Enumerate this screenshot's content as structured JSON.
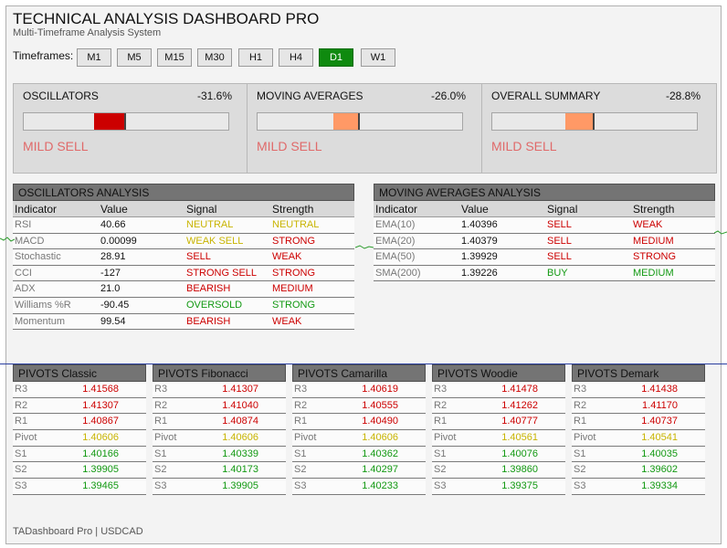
{
  "header": {
    "title": "TECHNICAL ANALYSIS DASHBOARD PRO",
    "subtitle": "Multi-Timeframe Analysis System",
    "timeframes_label": "Timeframes:"
  },
  "timeframes": [
    "M1",
    "M5",
    "M15",
    "M30",
    "H1",
    "H4",
    "D1",
    "W1"
  ],
  "active_timeframe": "D1",
  "colors": {
    "active_button": "#0f8a0f",
    "strong_sell_fill": "#cc0000",
    "mild_sell_fill": "#ff9966",
    "signal_text": "#e06a6a",
    "sell": "#cc0000",
    "buy": "#129912",
    "neutral": "#c8b400"
  },
  "summary_cards": [
    {
      "name": "OSCILLATORS",
      "percent": "-31.6%",
      "signal": "MILD SELL",
      "gauge_fill": 0.158,
      "fill_color": "#cc0000"
    },
    {
      "name": "MOVING AVERAGES",
      "percent": "-26.0%",
      "signal": "MILD SELL",
      "gauge_fill": 0.13,
      "fill_color": "#ff9966"
    },
    {
      "name": "OVERALL SUMMARY",
      "percent": "-28.8%",
      "signal": "MILD SELL",
      "gauge_fill": 0.144,
      "fill_color": "#ff9966"
    }
  ],
  "oscillators": {
    "title": "OSCILLATORS ANALYSIS",
    "columns": [
      "Indicator",
      "Value",
      "Signal",
      "Strength"
    ],
    "rows": [
      {
        "indicator": "RSI",
        "value": "40.66",
        "signal": "NEUTRAL",
        "signal_color": "#c8b400",
        "strength": "NEUTRAL",
        "strength_color": "#c8b400"
      },
      {
        "indicator": "MACD",
        "value": "0.00099",
        "signal": "WEAK SELL",
        "signal_color": "#c8b400",
        "strength": "STRONG",
        "strength_color": "#cc0000"
      },
      {
        "indicator": "Stochastic",
        "value": "28.91",
        "signal": "SELL",
        "signal_color": "#cc0000",
        "strength": "WEAK",
        "strength_color": "#cc0000"
      },
      {
        "indicator": "CCI",
        "value": "-127",
        "signal": "STRONG SELL",
        "signal_color": "#cc0000",
        "strength": "STRONG",
        "strength_color": "#cc0000"
      },
      {
        "indicator": "ADX",
        "value": "21.0",
        "signal": "BEARISH",
        "signal_color": "#cc0000",
        "strength": "MEDIUM",
        "strength_color": "#cc0000"
      },
      {
        "indicator": "Williams %R",
        "value": "-90.45",
        "signal": "OVERSOLD",
        "signal_color": "#129912",
        "strength": "STRONG",
        "strength_color": "#129912"
      },
      {
        "indicator": "Momentum",
        "value": "99.54",
        "signal": "BEARISH",
        "signal_color": "#cc0000",
        "strength": "WEAK",
        "strength_color": "#cc0000"
      }
    ]
  },
  "moving_averages": {
    "title": "MOVING AVERAGES ANALYSIS",
    "columns": [
      "Indicator",
      "Value",
      "Signal",
      "Strength"
    ],
    "rows": [
      {
        "indicator": "EMA(10)",
        "value": "1.40396",
        "signal": "SELL",
        "signal_color": "#cc0000",
        "strength": "WEAK",
        "strength_color": "#cc0000"
      },
      {
        "indicator": "EMA(20)",
        "value": "1.40379",
        "signal": "SELL",
        "signal_color": "#cc0000",
        "strength": "MEDIUM",
        "strength_color": "#cc0000"
      },
      {
        "indicator": "EMA(50)",
        "value": "1.39929",
        "signal": "SELL",
        "signal_color": "#cc0000",
        "strength": "STRONG",
        "strength_color": "#cc0000"
      },
      {
        "indicator": "SMA(200)",
        "value": "1.39226",
        "signal": "BUY",
        "signal_color": "#129912",
        "strength": "MEDIUM",
        "strength_color": "#129912"
      }
    ]
  },
  "pivots": [
    {
      "title": "PIVOTS Classic",
      "levels": [
        {
          "label": "R3",
          "value": "1.41568"
        },
        {
          "label": "R2",
          "value": "1.41307"
        },
        {
          "label": "R1",
          "value": "1.40867"
        },
        {
          "label": "Pivot",
          "value": "1.40606"
        },
        {
          "label": "S1",
          "value": "1.40166"
        },
        {
          "label": "S2",
          "value": "1.39905"
        },
        {
          "label": "S3",
          "value": "1.39465"
        }
      ]
    },
    {
      "title": "PIVOTS Fibonacci",
      "levels": [
        {
          "label": "R3",
          "value": "1.41307"
        },
        {
          "label": "R2",
          "value": "1.41040"
        },
        {
          "label": "R1",
          "value": "1.40874"
        },
        {
          "label": "Pivot",
          "value": "1.40606"
        },
        {
          "label": "S1",
          "value": "1.40339"
        },
        {
          "label": "S2",
          "value": "1.40173"
        },
        {
          "label": "S3",
          "value": "1.39905"
        }
      ]
    },
    {
      "title": "PIVOTS Camarilla",
      "levels": [
        {
          "label": "R3",
          "value": "1.40619"
        },
        {
          "label": "R2",
          "value": "1.40555"
        },
        {
          "label": "R1",
          "value": "1.40490"
        },
        {
          "label": "Pivot",
          "value": "1.40606"
        },
        {
          "label": "S1",
          "value": "1.40362"
        },
        {
          "label": "S2",
          "value": "1.40297"
        },
        {
          "label": "S3",
          "value": "1.40233"
        }
      ]
    },
    {
      "title": "PIVOTS Woodie",
      "levels": [
        {
          "label": "R3",
          "value": "1.41478"
        },
        {
          "label": "R2",
          "value": "1.41262"
        },
        {
          "label": "R1",
          "value": "1.40777"
        },
        {
          "label": "Pivot",
          "value": "1.40561"
        },
        {
          "label": "S1",
          "value": "1.40076"
        },
        {
          "label": "S2",
          "value": "1.39860"
        },
        {
          "label": "S3",
          "value": "1.39375"
        }
      ]
    },
    {
      "title": "PIVOTS Demark",
      "levels": [
        {
          "label": "R3",
          "value": "1.41438"
        },
        {
          "label": "R2",
          "value": "1.41170"
        },
        {
          "label": "R1",
          "value": "1.40737"
        },
        {
          "label": "Pivot",
          "value": "1.40541"
        },
        {
          "label": "S1",
          "value": "1.40035"
        },
        {
          "label": "S2",
          "value": "1.39602"
        },
        {
          "label": "S3",
          "value": "1.39334"
        }
      ]
    }
  ],
  "footer": "TADashboard Pro | USDCAD"
}
